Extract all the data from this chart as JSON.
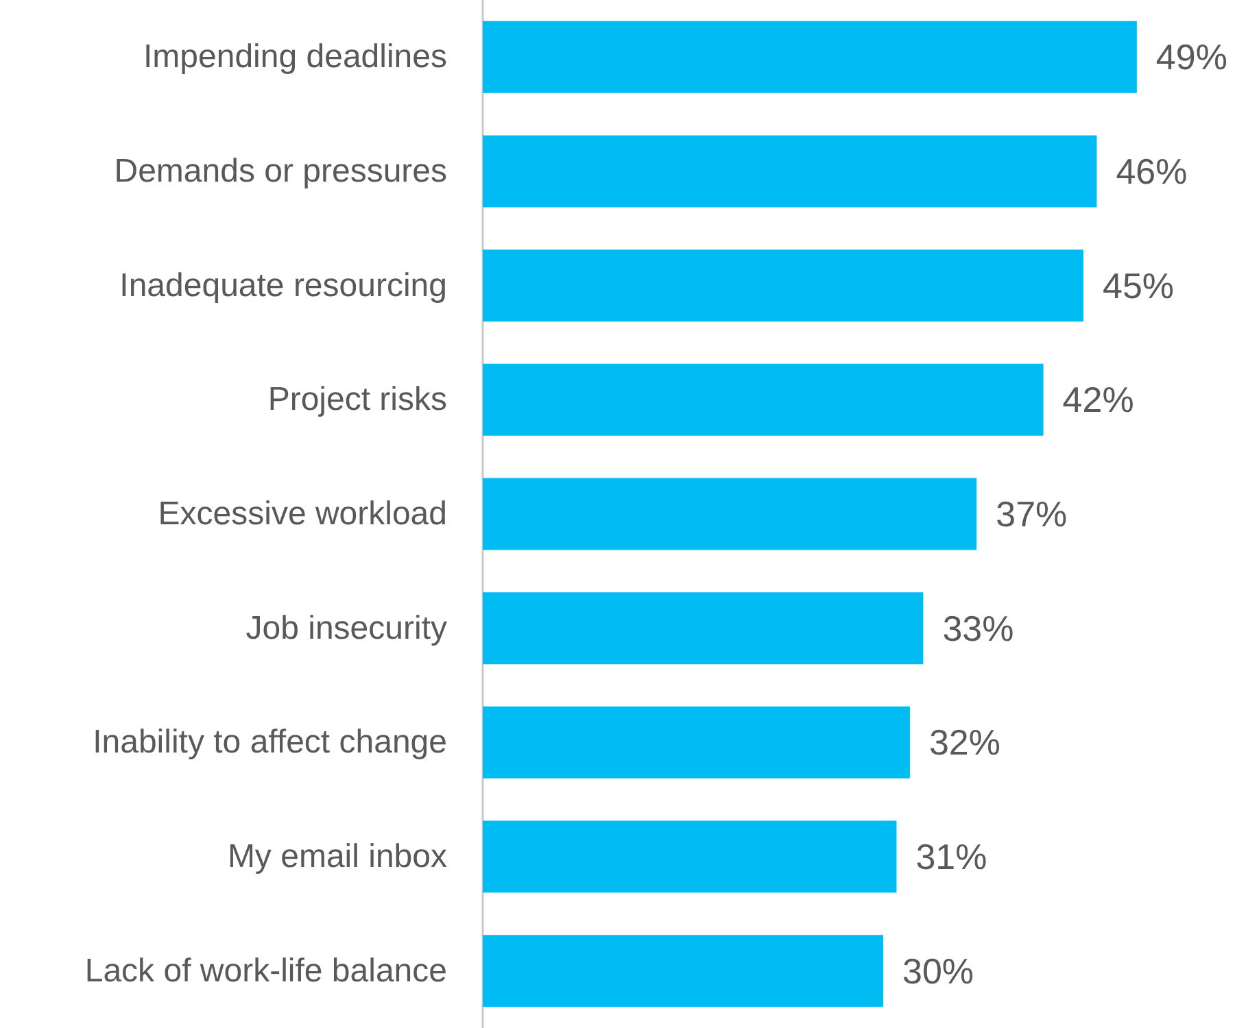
{
  "chart_data": {
    "type": "bar",
    "orientation": "horizontal",
    "categories": [
      "Impending deadlines",
      "Demands or pressures",
      "Inadequate resourcing",
      "Project risks",
      "Excessive workload",
      "Job insecurity",
      "Inability to affect change",
      "My email inbox",
      "Lack of work-life balance"
    ],
    "values": [
      49,
      46,
      45,
      42,
      37,
      33,
      32,
      31,
      30
    ],
    "value_labels": [
      "49%",
      "46%",
      "45%",
      "42%",
      "37%",
      "33%",
      "32%",
      "31%",
      "30%"
    ],
    "color": "#00bcf2"
  }
}
